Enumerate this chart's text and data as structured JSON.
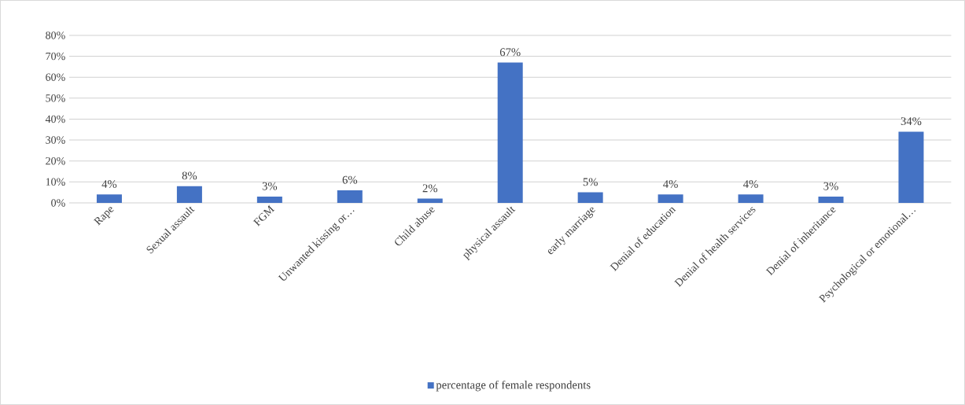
{
  "chart_data": {
    "type": "bar",
    "categories": [
      "Rape",
      "Sexual assault",
      "FGM",
      "Unwanted kissing or…",
      "Child abuse",
      "physical assault",
      "early marriage",
      "Denial of education",
      "Denial of health services",
      "Denial of inheritance",
      "Psychological or emotional…"
    ],
    "series": [
      {
        "name": "percentage of female respondents",
        "color": "#4472c4",
        "values": [
          4,
          8,
          3,
          6,
          2,
          67,
          5,
          4,
          4,
          3,
          34
        ],
        "value_labels": [
          "4%",
          "8%",
          "3%",
          "6%",
          "2%",
          "67%",
          "5%",
          "4%",
          "4%",
          "3%",
          "34%"
        ]
      }
    ],
    "ylim": [
      0,
      80
    ],
    "yticks": [
      {
        "value": 0,
        "label": "0%"
      },
      {
        "value": 10,
        "label": "10%"
      },
      {
        "value": 20,
        "label": "20%"
      },
      {
        "value": 30,
        "label": "30%"
      },
      {
        "value": 40,
        "label": "40%"
      },
      {
        "value": 50,
        "label": "50%"
      },
      {
        "value": 60,
        "label": "60%"
      },
      {
        "value": 70,
        "label": "70%"
      },
      {
        "value": 80,
        "label": "80%"
      }
    ],
    "grid": "y",
    "legend": "bottom"
  }
}
